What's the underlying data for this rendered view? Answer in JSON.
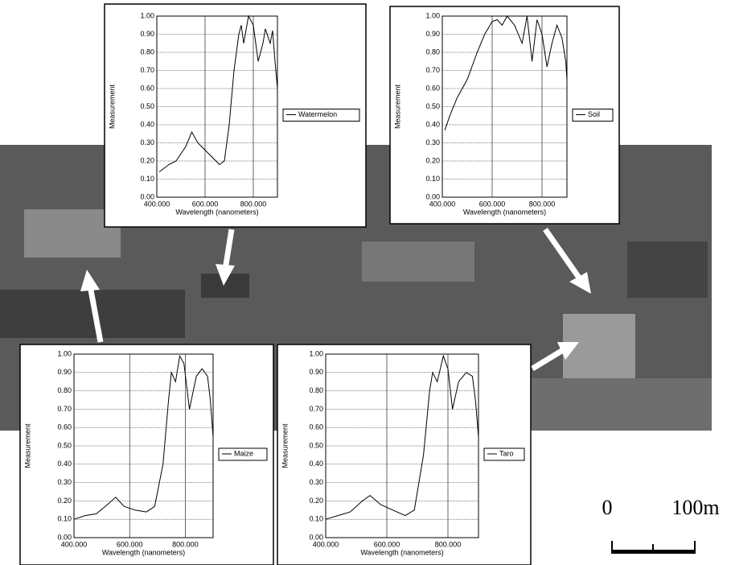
{
  "chart_data": [
    {
      "type": "line",
      "x_label": "Wavelength (nanometers)",
      "y_label": "Measurement",
      "x": [
        410,
        450,
        480,
        520,
        545,
        570,
        600,
        630,
        660,
        680,
        700,
        720,
        740,
        750,
        760,
        780,
        800,
        820,
        840,
        850,
        870,
        880,
        890,
        900
      ],
      "series": [
        {
          "name": "Watermelon",
          "color": "#000000",
          "values": [
            0.14,
            0.18,
            0.2,
            0.28,
            0.36,
            0.3,
            0.26,
            0.22,
            0.18,
            0.2,
            0.4,
            0.7,
            0.9,
            0.95,
            0.85,
            1.0,
            0.95,
            0.75,
            0.85,
            0.93,
            0.85,
            0.92,
            0.75,
            0.6
          ]
        }
      ],
      "xlim": [
        400,
        900
      ],
      "ylim": [
        0,
        1
      ],
      "xticks": [
        {
          "value": 400,
          "label": "400.000"
        },
        {
          "value": 600,
          "label": "600.000"
        },
        {
          "value": 800,
          "label": "800.000"
        }
      ],
      "yticks": [
        {
          "value": 0,
          "label": "0.00"
        },
        {
          "value": 0.1,
          "label": "0.10"
        },
        {
          "value": 0.2,
          "label": "0.20"
        },
        {
          "value": 0.3,
          "label": "0.30"
        },
        {
          "value": 0.4,
          "label": "0.40"
        },
        {
          "value": 0.5,
          "label": "0.50"
        },
        {
          "value": 0.6,
          "label": "0.60"
        },
        {
          "value": 0.7,
          "label": "0.70"
        },
        {
          "value": 0.8,
          "label": "0.80"
        },
        {
          "value": 0.9,
          "label": "0.90"
        },
        {
          "value": 1,
          "label": "1.00"
        }
      ],
      "grid": true,
      "legend": "right"
    },
    {
      "type": "line",
      "x_label": "Wavelength (nanometers)",
      "y_label": "Measurement",
      "x": [
        410,
        430,
        460,
        500,
        540,
        570,
        600,
        620,
        640,
        660,
        690,
        720,
        740,
        760,
        780,
        800,
        820,
        840,
        860,
        880,
        895,
        900
      ],
      "series": [
        {
          "name": "Soil",
          "color": "#000000",
          "values": [
            0.37,
            0.45,
            0.55,
            0.65,
            0.8,
            0.9,
            0.97,
            0.98,
            0.95,
            1.0,
            0.95,
            0.85,
            1.0,
            0.75,
            0.98,
            0.9,
            0.72,
            0.85,
            0.95,
            0.88,
            0.75,
            0.65
          ]
        }
      ],
      "xlim": [
        400,
        900
      ],
      "ylim": [
        0,
        1
      ],
      "xticks": [
        {
          "value": 400,
          "label": "400.000"
        },
        {
          "value": 600,
          "label": "600.000"
        },
        {
          "value": 800,
          "label": "800.000"
        }
      ],
      "yticks": [
        {
          "value": 0,
          "label": "0.00"
        },
        {
          "value": 0.1,
          "label": "0.10"
        },
        {
          "value": 0.2,
          "label": "0.20"
        },
        {
          "value": 0.3,
          "label": "0.30"
        },
        {
          "value": 0.4,
          "label": "0.40"
        },
        {
          "value": 0.5,
          "label": "0.50"
        },
        {
          "value": 0.6,
          "label": "0.60"
        },
        {
          "value": 0.7,
          "label": "0.70"
        },
        {
          "value": 0.8,
          "label": "0.80"
        },
        {
          "value": 0.9,
          "label": "0.90"
        },
        {
          "value": 1,
          "label": "1.00"
        }
      ],
      "grid": true,
      "legend": "right"
    },
    {
      "type": "line",
      "x_label": "Wavelength (nanometers)",
      "y_label": "Measurement",
      "x": [
        400,
        440,
        480,
        520,
        550,
        580,
        620,
        660,
        690,
        720,
        740,
        750,
        765,
        780,
        795,
        815,
        840,
        860,
        880,
        890,
        900
      ],
      "series": [
        {
          "name": "Maize",
          "color": "#000000",
          "values": [
            0.1,
            0.12,
            0.13,
            0.18,
            0.22,
            0.17,
            0.15,
            0.14,
            0.17,
            0.4,
            0.75,
            0.9,
            0.85,
            0.99,
            0.95,
            0.7,
            0.88,
            0.92,
            0.88,
            0.75,
            0.55
          ]
        }
      ],
      "xlim": [
        400,
        900
      ],
      "ylim": [
        0,
        1
      ],
      "xticks": [
        {
          "value": 400,
          "label": "400.000"
        },
        {
          "value": 600,
          "label": "600.000"
        },
        {
          "value": 800,
          "label": "800.000"
        }
      ],
      "yticks": [
        {
          "value": 0,
          "label": "0.00"
        },
        {
          "value": 0.1,
          "label": "0.10"
        },
        {
          "value": 0.2,
          "label": "0.20"
        },
        {
          "value": 0.3,
          "label": "0.30"
        },
        {
          "value": 0.4,
          "label": "0.40"
        },
        {
          "value": 0.5,
          "label": "0.50"
        },
        {
          "value": 0.6,
          "label": "0.60"
        },
        {
          "value": 0.7,
          "label": "0.70"
        },
        {
          "value": 0.8,
          "label": "0.80"
        },
        {
          "value": 0.9,
          "label": "0.90"
        },
        {
          "value": 1,
          "label": "1.00"
        }
      ],
      "grid": true,
      "legend": "right"
    },
    {
      "type": "line",
      "x_label": "Wavelength (nanometers)",
      "y_label": "Measurement",
      "x": [
        400,
        440,
        480,
        520,
        545,
        580,
        620,
        660,
        690,
        720,
        740,
        750,
        765,
        785,
        800,
        815,
        835,
        860,
        880,
        890,
        900
      ],
      "series": [
        {
          "name": "Taro",
          "color": "#000000",
          "values": [
            0.1,
            0.12,
            0.14,
            0.2,
            0.23,
            0.18,
            0.15,
            0.12,
            0.15,
            0.45,
            0.8,
            0.9,
            0.85,
            0.99,
            0.92,
            0.7,
            0.85,
            0.9,
            0.88,
            0.75,
            0.55
          ]
        }
      ],
      "xlim": [
        400,
        900
      ],
      "ylim": [
        0,
        1
      ],
      "xticks": [
        {
          "value": 400,
          "label": "400.000"
        },
        {
          "value": 600,
          "label": "600.000"
        },
        {
          "value": 800,
          "label": "800.000"
        }
      ],
      "yticks": [
        {
          "value": 0,
          "label": "0.00"
        },
        {
          "value": 0.1,
          "label": "0.10"
        },
        {
          "value": 0.2,
          "label": "0.20"
        },
        {
          "value": 0.3,
          "label": "0.30"
        },
        {
          "value": 0.4,
          "label": "0.40"
        },
        {
          "value": 0.5,
          "label": "0.50"
        },
        {
          "value": 0.6,
          "label": "0.60"
        },
        {
          "value": 0.7,
          "label": "0.70"
        },
        {
          "value": 0.8,
          "label": "0.80"
        },
        {
          "value": 0.9,
          "label": "0.90"
        },
        {
          "value": 1,
          "label": "1.00"
        }
      ],
      "grid": true,
      "legend": "right"
    }
  ],
  "scale_bar": {
    "start": "0",
    "end": "100m"
  }
}
